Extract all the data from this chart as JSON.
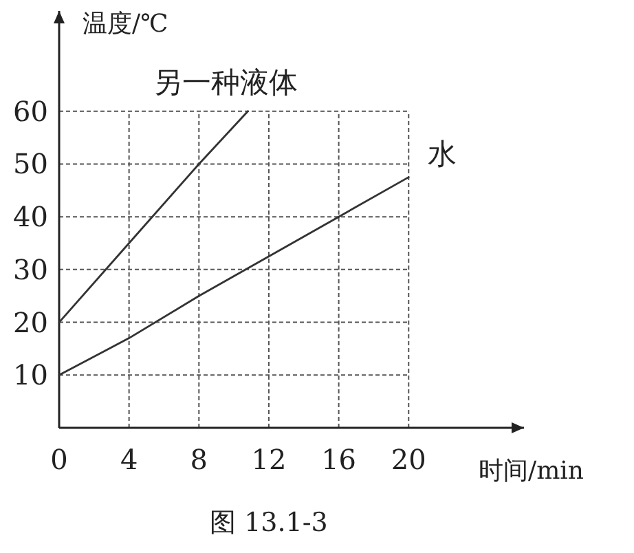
{
  "chart_data": {
    "type": "line",
    "xlabel": "时间/min",
    "ylabel": "温度/℃",
    "annotations": [
      "图 13.1-3"
    ],
    "series": [
      {
        "name": "另一种液体",
        "color": "#333333",
        "x": [
          0,
          4,
          8,
          10.8
        ],
        "values": [
          20,
          35,
          50,
          60
        ]
      },
      {
        "name": "水",
        "color": "#333333",
        "x": [
          0,
          4,
          8,
          12,
          16,
          20
        ],
        "values": [
          10,
          17,
          25,
          32.5,
          40,
          47.5
        ]
      }
    ],
    "xlim": [
      0,
      26.6
    ],
    "ylim": [
      0,
      79
    ],
    "xticks": [
      0,
      4,
      8,
      12,
      16,
      20
    ],
    "yticks": [
      10,
      20,
      30,
      40,
      50,
      60
    ],
    "grid": true,
    "marker": "none",
    "line_style": "solid"
  }
}
